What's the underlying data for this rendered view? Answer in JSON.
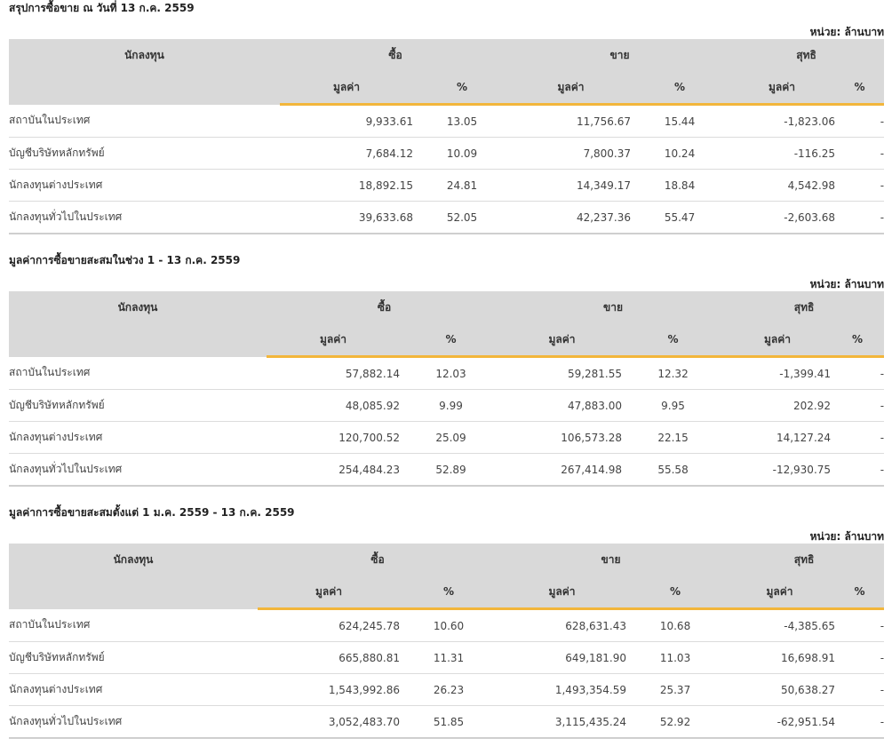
{
  "unit_label": "หน่วย: ล้านบาท",
  "headers": {
    "investor": "นักลงทุน",
    "buy": "ซื้อ",
    "sell": "ขาย",
    "net": "สุทธิ",
    "value": "มูลค่า",
    "percent": "%"
  },
  "sections": [
    {
      "title": "สรุปการซื้อขาย ณ วันที่ 13 ก.ค. 2559",
      "rows": [
        {
          "investor": "สถาบันในประเทศ",
          "buy_value": "9,933.61",
          "buy_pct": "13.05",
          "sell_value": "11,756.67",
          "sell_pct": "15.44",
          "net_value": "-1,823.06",
          "net_pct": "-"
        },
        {
          "investor": "บัญชีบริษัทหลักทรัพย์",
          "buy_value": "7,684.12",
          "buy_pct": "10.09",
          "sell_value": "7,800.37",
          "sell_pct": "10.24",
          "net_value": "-116.25",
          "net_pct": "-"
        },
        {
          "investor": "นักลงทุนต่างประเทศ",
          "buy_value": "18,892.15",
          "buy_pct": "24.81",
          "sell_value": "14,349.17",
          "sell_pct": "18.84",
          "net_value": "4,542.98",
          "net_pct": "-"
        },
        {
          "investor": "นักลงทุนทั่วไปในประเทศ",
          "buy_value": "39,633.68",
          "buy_pct": "52.05",
          "sell_value": "42,237.36",
          "sell_pct": "55.47",
          "net_value": "-2,603.68",
          "net_pct": "-"
        }
      ]
    },
    {
      "title": "มูลค่าการซื้อขายสะสมในช่วง 1 - 13 ก.ค. 2559",
      "rows": [
        {
          "investor": "สถาบันในประเทศ",
          "buy_value": "57,882.14",
          "buy_pct": "12.03",
          "sell_value": "59,281.55",
          "sell_pct": "12.32",
          "net_value": "-1,399.41",
          "net_pct": "-"
        },
        {
          "investor": "บัญชีบริษัทหลักทรัพย์",
          "buy_value": "48,085.92",
          "buy_pct": "9.99",
          "sell_value": "47,883.00",
          "sell_pct": "9.95",
          "net_value": "202.92",
          "net_pct": "-"
        },
        {
          "investor": "นักลงทุนต่างประเทศ",
          "buy_value": "120,700.52",
          "buy_pct": "25.09",
          "sell_value": "106,573.28",
          "sell_pct": "22.15",
          "net_value": "14,127.24",
          "net_pct": "-"
        },
        {
          "investor": "นักลงทุนทั่วไปในประเทศ",
          "buy_value": "254,484.23",
          "buy_pct": "52.89",
          "sell_value": "267,414.98",
          "sell_pct": "55.58",
          "net_value": "-12,930.75",
          "net_pct": "-"
        }
      ]
    },
    {
      "title": "มูลค่าการซื้อขายสะสมตั้งแต่ 1 ม.ค. 2559 - 13 ก.ค. 2559",
      "rows": [
        {
          "investor": "สถาบันในประเทศ",
          "buy_value": "624,245.78",
          "buy_pct": "10.60",
          "sell_value": "628,631.43",
          "sell_pct": "10.68",
          "net_value": "-4,385.65",
          "net_pct": "-"
        },
        {
          "investor": "บัญชีบริษัทหลักทรัพย์",
          "buy_value": "665,880.81",
          "buy_pct": "11.31",
          "sell_value": "649,181.90",
          "sell_pct": "11.03",
          "net_value": "16,698.91",
          "net_pct": "-"
        },
        {
          "investor": "นักลงทุนต่างประเทศ",
          "buy_value": "1,543,992.86",
          "buy_pct": "26.23",
          "sell_value": "1,493,354.59",
          "sell_pct": "25.37",
          "net_value": "50,638.27",
          "net_pct": "-"
        },
        {
          "investor": "นักลงทุนทั่วไปในประเทศ",
          "buy_value": "3,052,483.70",
          "buy_pct": "51.85",
          "sell_value": "3,115,435.24",
          "sell_pct": "52.92",
          "net_value": "-62,951.54",
          "net_pct": "-"
        }
      ]
    }
  ],
  "colors": {
    "negative": "#e0262b",
    "positive": "#4a9a2b",
    "header_bg": "#d9d9d9",
    "accent_underline": "#f2b63b"
  }
}
